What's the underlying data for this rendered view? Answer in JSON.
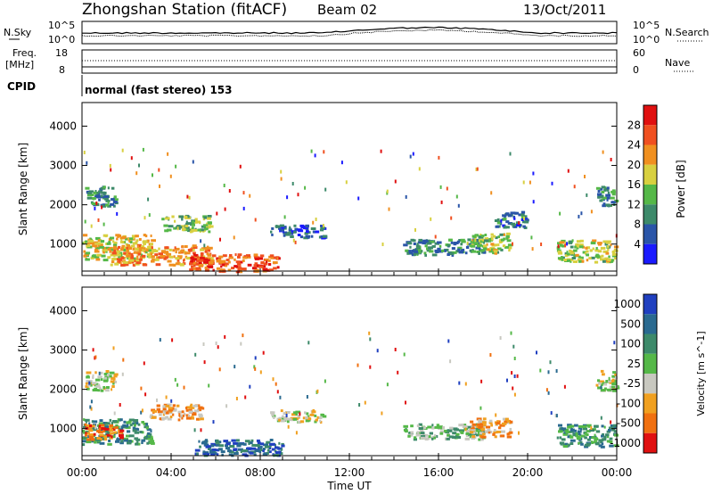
{
  "header": {
    "station": "Zhongshan Station (fitACF)",
    "beam": "Beam 02",
    "date": "13/Oct/2011"
  },
  "top_panel": {
    "left_label": "N.Sky",
    "left_ticks": [
      "10^5",
      "10^0"
    ],
    "right_ticks": [
      "10^5",
      "10^0"
    ],
    "right_label": "N.Search"
  },
  "freq_panel": {
    "label_line1": "Freq.",
    "label_line2": "[MHz]",
    "left_ticks": [
      "18",
      "8"
    ],
    "right_ticks": [
      "60",
      "0"
    ],
    "right_label": "Nave"
  },
  "cpid_panel": {
    "label": "CPID",
    "mode_text": "normal (fast stereo) 153"
  },
  "chart_data": [
    {
      "type": "heatmap",
      "title": "",
      "xlabel": "Time UT",
      "ylabel": "Slant Range [km]",
      "x_ticks": [
        "00:00",
        "04:00",
        "08:00",
        "12:00",
        "16:00",
        "20:00",
        "00:00"
      ],
      "y_ticks": [
        "1000",
        "2000",
        "3000",
        "4000"
      ],
      "ylim": [
        200,
        4600
      ],
      "colorbar_label": "Power [dB]",
      "colorbar_ticks": [
        "4",
        "8",
        "12",
        "16",
        "20",
        "24",
        "28"
      ],
      "colors": [
        "#1a1aff",
        "#2a55a8",
        "#3d8a6a",
        "#55b848",
        "#d8d040",
        "#f09020",
        "#f05020",
        "#e01010"
      ],
      "blobs": [
        {
          "t": 1.5,
          "r": 900,
          "dt": 3.2,
          "dr": 320,
          "v": 18
        },
        {
          "t": 3.5,
          "r": 700,
          "dt": 4.5,
          "dr": 250,
          "v": 22
        },
        {
          "t": 6.8,
          "r": 500,
          "dt": 4.0,
          "dr": 220,
          "v": 26
        },
        {
          "t": 4.6,
          "r": 1500,
          "dt": 2.2,
          "dr": 200,
          "v": 14
        },
        {
          "t": 9.6,
          "r": 1300,
          "dt": 2.4,
          "dr": 160,
          "v": 6
        },
        {
          "t": 0.8,
          "r": 2200,
          "dt": 1.4,
          "dr": 250,
          "v": 10
        },
        {
          "t": 16.2,
          "r": 900,
          "dt": 3.6,
          "dr": 200,
          "v": 10
        },
        {
          "t": 18.3,
          "r": 1000,
          "dt": 1.8,
          "dr": 250,
          "v": 16
        },
        {
          "t": 22.6,
          "r": 800,
          "dt": 2.6,
          "dr": 280,
          "v": 16
        },
        {
          "t": 23.5,
          "r": 2200,
          "dt": 0.9,
          "dr": 250,
          "v": 10
        },
        {
          "t": 19.2,
          "r": 1600,
          "dt": 1.4,
          "dr": 200,
          "v": 8
        }
      ]
    },
    {
      "type": "heatmap",
      "title": "",
      "xlabel": "Time UT",
      "ylabel": "Slant Range [km]",
      "x_ticks": [
        "00:00",
        "04:00",
        "08:00",
        "12:00",
        "16:00",
        "20:00",
        "00:00"
      ],
      "y_ticks": [
        "1000",
        "2000",
        "3000",
        "4000"
      ],
      "ylim": [
        200,
        4600
      ],
      "colorbar_label": "Velocity [m s^-1]",
      "colorbar_ticks": [
        "1000",
        "500",
        "100",
        "25",
        "-25",
        "-100",
        "-500",
        "-1000"
      ],
      "colors": [
        "#2040c0",
        "#2a6a90",
        "#3d8a6a",
        "#55b848",
        "#c8c8c0",
        "#f0a020",
        "#f07010",
        "#e01010"
      ],
      "blobs": [
        {
          "t": 1.5,
          "r": 900,
          "dt": 3.2,
          "dr": 320,
          "v": 2
        },
        {
          "t": 4.2,
          "r": 1400,
          "dt": 2.4,
          "dr": 200,
          "v": 5
        },
        {
          "t": 7.0,
          "r": 500,
          "dt": 4.0,
          "dr": 200,
          "v": 1
        },
        {
          "t": 0.8,
          "r": 2200,
          "dt": 1.4,
          "dr": 250,
          "v": 4
        },
        {
          "t": 9.6,
          "r": 1300,
          "dt": 2.4,
          "dr": 160,
          "v": 4
        },
        {
          "t": 16.2,
          "r": 900,
          "dt": 3.6,
          "dr": 200,
          "v": 3
        },
        {
          "t": 18.3,
          "r": 1000,
          "dt": 1.8,
          "dr": 250,
          "v": 5
        },
        {
          "t": 22.6,
          "r": 800,
          "dt": 2.6,
          "dr": 280,
          "v": 2
        },
        {
          "t": 23.5,
          "r": 2200,
          "dt": 0.9,
          "dr": 250,
          "v": 4
        },
        {
          "t": 0.9,
          "r": 900,
          "dt": 1.6,
          "dr": 200,
          "v": 6
        }
      ]
    }
  ]
}
